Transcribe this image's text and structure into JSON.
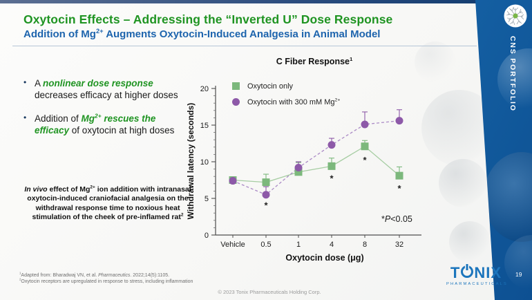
{
  "slide": {
    "title": "Oxytocin Effects – Addressing the “Inverted U” Dose Response",
    "subtitle": {
      "pre": "Addition of Mg",
      "sup": "2+",
      "post": " Augments Oxytocin-Induced Analgesia in Animal Model"
    },
    "page_number": "19",
    "copyright": "© 2023 Tonix Pharmaceuticals Holding Corp."
  },
  "bullets": {
    "b1": {
      "pre": "A ",
      "em": "nonlinear dose response",
      "post": " decreases efficacy at higher doses"
    },
    "b2": {
      "pre": "Addition of ",
      "em1": "Mg",
      "em1_sup": "2+",
      "em2": " rescues the efficacy",
      "post": " of oxytocin at high doses"
    }
  },
  "note": {
    "italic": "In vivo",
    "mid": " effect of Mg",
    "sup1": "2+",
    "body": " ion addition with intranasal oxytocin-induced craniofacial analgesia on the withdrawal response time to noxious heat stimulation of the cheek of pre-inflamed rat",
    "sup2": "2"
  },
  "footnotes": {
    "f1": {
      "sup": "1",
      "pre": "Adapted from: Bharadwaj VN, et al. ",
      "italic": "Pharmaceutics",
      "post": ". 2022;14(5):1105."
    },
    "f2": {
      "sup": "2",
      "text": "Oxytocin receptors are upregulated in response to stress, including inflammation"
    }
  },
  "sidebar": {
    "label": "CNS PORTFOLIO",
    "accent": "#1a6cb0",
    "icon": "neuron-icon"
  },
  "logo": {
    "t1": "T",
    "t2": "NIX",
    "sub": "PHARMACEUTICALS",
    "color": "#1c75bc"
  },
  "chart_data": {
    "type": "line",
    "title": "C Fiber Response",
    "title_sup": "1",
    "categories": [
      "Vehicle",
      "0.5",
      "1",
      "4",
      "8",
      "32"
    ],
    "xlabel": "Oxytocin dose (μg)",
    "ylabel": "Withdrawal latency (seconds)",
    "ylim": [
      0,
      20
    ],
    "yticks": [
      0,
      5,
      10,
      15,
      20
    ],
    "minor_tick_step": 1,
    "grid": false,
    "legend_position": "top-left-inside",
    "annotation": {
      "star": "*",
      "p": "P",
      "rest": "<0.05"
    },
    "series": [
      {
        "name": "Oxytocin only",
        "marker": "square",
        "color": "#7cb87c",
        "line_color": "#a6cda2",
        "line_style": "solid",
        "values": [
          7.5,
          7.2,
          8.6,
          9.4,
          12.1,
          8.1
        ],
        "error_up": [
          0.4,
          1.1,
          1.3,
          1.1,
          0.8,
          1.2
        ]
      },
      {
        "name_pre": "Oxytocin with 300 mM Mg",
        "name_sup": "2+",
        "marker": "circle",
        "color": "#8d59a8",
        "line_color": "#ab8ac6",
        "line_style": "dashed",
        "values": [
          7.4,
          5.5,
          9.2,
          12.3,
          15.1,
          15.6
        ],
        "error_up": [
          0.4,
          1.1,
          0.8,
          0.9,
          1.7,
          1.5
        ]
      }
    ],
    "significance_marks": [
      {
        "series": 1,
        "category": "0.5",
        "y": 4.0
      },
      {
        "series": 0,
        "category": "4",
        "y": 7.7
      },
      {
        "series": 0,
        "category": "8",
        "y": 10.2
      },
      {
        "series": 0,
        "category": "32",
        "y": 6.3
      }
    ]
  }
}
